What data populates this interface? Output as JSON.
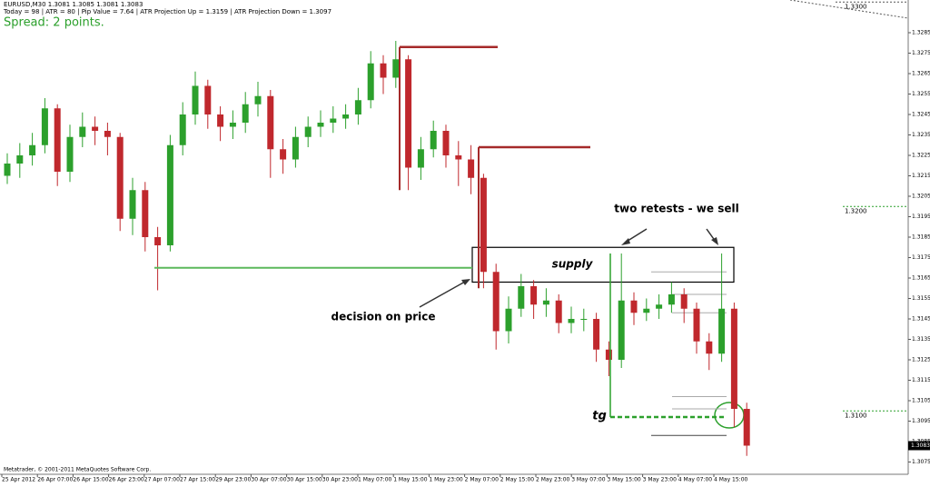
{
  "chart_data": {
    "type": "candlestick",
    "title": "EURUSD,M30  1.3081 1.3085 1.3081 1.3083",
    "subtitle": "Today = 98  |  ATR = 80  |  Pip Value = 7.64  |  ATR Projection Up = 1.3159  |  ATR Projection Down = 1.3097",
    "spread": "Spread: 2 points.",
    "footer": "Metatrader, © 2001-2011 MetaQuotes Software Corp.",
    "ylim": [
      1.3069,
      1.3301
    ],
    "yticks": [
      1.3285,
      1.3275,
      1.3265,
      1.3255,
      1.3245,
      1.3235,
      1.3225,
      1.3215,
      1.3205,
      1.3195,
      1.3185,
      1.3175,
      1.3165,
      1.3155,
      1.3145,
      1.3135,
      1.3125,
      1.3115,
      1.3105,
      1.3095,
      1.3085,
      1.3075
    ],
    "grid": false,
    "xticks": [
      "25 Apr 2012",
      "26 Apr 07:00",
      "26 Apr 15:00",
      "26 Apr 23:00",
      "27 Apr 07:00",
      "27 Apr 15:00",
      "29 Apr 23:00",
      "30 Apr 07:00",
      "30 Apr 15:00",
      "30 Apr 23:00",
      "1 May 07:00",
      "1 May 15:00",
      "1 May 23:00",
      "2 May 07:00",
      "2 May 15:00",
      "2 May 23:00",
      "3 May 07:00",
      "3 May 15:00",
      "3 May 23:00",
      "4 May 07:00",
      "4 May 15:00"
    ],
    "up_color": "#2ca02c",
    "down_color": "#c0282d",
    "open": [
      1.3215,
      1.3221,
      1.3225,
      1.323,
      1.3248,
      1.3217,
      1.3234,
      1.3239,
      1.3237,
      1.3234,
      1.3194,
      1.3208,
      1.3185,
      1.3181,
      1.323,
      1.3245,
      1.3259,
      1.3245,
      1.3239,
      1.3241,
      1.325,
      1.3254,
      1.3228,
      1.3223,
      1.3234,
      1.3239,
      1.3241,
      1.3243,
      1.3245,
      1.3252,
      1.327,
      1.3263,
      1.3272,
      1.3219,
      1.3228,
      1.3237,
      1.3225,
      1.3223,
      1.3214,
      1.3168,
      1.3139,
      1.315,
      1.3161,
      1.3152,
      1.3154,
      1.3143,
      1.3145,
      1.3145,
      1.313,
      1.3125,
      1.3154,
      1.3148,
      1.315,
      1.3152,
      1.3157,
      1.315,
      1.3134,
      1.3128,
      1.315,
      1.3101
    ],
    "high": [
      1.3226,
      1.3231,
      1.3236,
      1.3253,
      1.325,
      1.324,
      1.3246,
      1.3244,
      1.3241,
      1.3236,
      1.3214,
      1.3212,
      1.319,
      1.3235,
      1.3251,
      1.3266,
      1.3262,
      1.3249,
      1.3247,
      1.3256,
      1.3261,
      1.3257,
      1.3233,
      1.3239,
      1.3244,
      1.3247,
      1.3249,
      1.325,
      1.3258,
      1.3276,
      1.3274,
      1.3281,
      1.3274,
      1.3234,
      1.3242,
      1.324,
      1.3232,
      1.323,
      1.3216,
      1.3172,
      1.3156,
      1.3167,
      1.3164,
      1.316,
      1.3157,
      1.3151,
      1.315,
      1.3148,
      1.3134,
      1.3177,
      1.3158,
      1.3155,
      1.3157,
      1.3163,
      1.316,
      1.3153,
      1.3138,
      1.3177,
      1.3153,
      1.3104
    ],
    "low": [
      1.3211,
      1.3214,
      1.322,
      1.3226,
      1.321,
      1.3212,
      1.3229,
      1.323,
      1.3225,
      1.3188,
      1.3186,
      1.3178,
      1.3159,
      1.3178,
      1.3225,
      1.324,
      1.3238,
      1.3232,
      1.3233,
      1.3236,
      1.3244,
      1.3214,
      1.3216,
      1.3219,
      1.3229,
      1.3234,
      1.3236,
      1.3238,
      1.324,
      1.3248,
      1.3255,
      1.3258,
      1.3208,
      1.3213,
      1.3224,
      1.3219,
      1.321,
      1.3206,
      1.316,
      1.313,
      1.3133,
      1.3146,
      1.3145,
      1.3146,
      1.3138,
      1.3138,
      1.3139,
      1.3124,
      1.3117,
      1.3121,
      1.3142,
      1.3144,
      1.3145,
      1.3148,
      1.3143,
      1.3128,
      1.312,
      1.3124,
      1.3092,
      1.3078
    ],
    "close": [
      1.3221,
      1.3225,
      1.323,
      1.3248,
      1.3217,
      1.3234,
      1.3239,
      1.3237,
      1.3234,
      1.3194,
      1.3208,
      1.3185,
      1.3181,
      1.323,
      1.3245,
      1.3259,
      1.3245,
      1.3239,
      1.3241,
      1.325,
      1.3254,
      1.3228,
      1.3223,
      1.3234,
      1.3239,
      1.3241,
      1.3243,
      1.3245,
      1.3252,
      1.327,
      1.3263,
      1.3272,
      1.3219,
      1.3228,
      1.3237,
      1.3225,
      1.3223,
      1.3214,
      1.3168,
      1.3139,
      1.315,
      1.3161,
      1.3152,
      1.3154,
      1.3143,
      1.3145,
      1.3145,
      1.313,
      1.3125,
      1.3154,
      1.3148,
      1.315,
      1.3152,
      1.3157,
      1.315,
      1.3134,
      1.3128,
      1.315,
      1.3101,
      1.3083
    ],
    "round_levels": [
      {
        "value": 1.33,
        "label": "1.3300"
      },
      {
        "value": 1.32,
        "label": "1.3200"
      },
      {
        "value": 1.31,
        "label": "1.3100"
      }
    ],
    "last_price": 1.3083,
    "levels": [
      {
        "value": 1.3278,
        "color": "#a52a2a"
      },
      {
        "value": 1.3229,
        "color": "#a52a2a"
      },
      {
        "value": 1.317,
        "color": "#5cb85c"
      },
      {
        "value": 1.3097,
        "color": "#2ca02c"
      }
    ],
    "supply_zone": [
      1.318,
      1.3163
    ],
    "gray_levels": [
      1.3168,
      1.3157,
      1.3148,
      1.3107,
      1.3101,
      1.3088
    ],
    "annotations": {
      "retests": "two retests - we sell",
      "supply": "supply",
      "decision": "decision on price",
      "target": "tg"
    }
  }
}
